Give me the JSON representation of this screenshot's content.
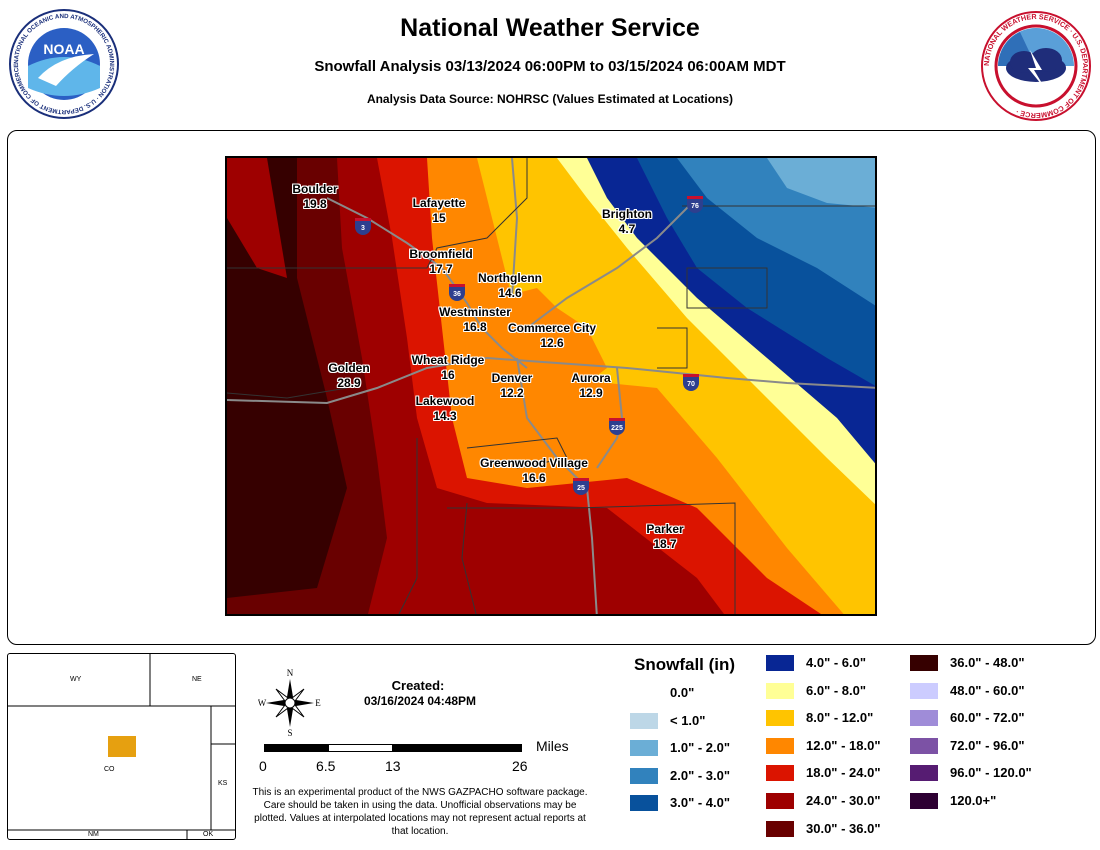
{
  "header": {
    "title": "National Weather Service",
    "subtitle": "Snowfall Analysis 03/13/2024 06:00PM to 03/15/2024 06:00AM MDT",
    "source": "Analysis Data Source: NOHRSC (Values Estimated at Locations)"
  },
  "logos": {
    "noaa_text": "NOAA",
    "noaa_ring": "NATIONAL OCEANIC AND ATMOSPHERIC ADMINISTRATION · U.S. DEPARTMENT OF COMMERCE ·",
    "nws_ring": "NATIONAL WEATHER SERVICE · U.S. DEPARTMENT OF COMMERCE ·"
  },
  "cities": [
    {
      "name": "Boulder",
      "value": "19.8"
    },
    {
      "name": "Lafayette",
      "value": "15"
    },
    {
      "name": "Brighton",
      "value": "4.7"
    },
    {
      "name": "Broomfield",
      "value": "17.7"
    },
    {
      "name": "Northglenn",
      "value": "14.6"
    },
    {
      "name": "Westminster",
      "value": "16.8"
    },
    {
      "name": "Commerce City",
      "value": "12.6"
    },
    {
      "name": "Golden",
      "value": "28.9"
    },
    {
      "name": "Wheat Ridge",
      "value": "16"
    },
    {
      "name": "Denver",
      "value": "12.2"
    },
    {
      "name": "Aurora",
      "value": "12.9"
    },
    {
      "name": "Lakewood",
      "value": "14.3"
    },
    {
      "name": "Greenwood Village",
      "value": "16.6"
    },
    {
      "name": "Parker",
      "value": "18.7"
    }
  ],
  "highways": [
    "3",
    "76",
    "36",
    "70",
    "225",
    "25"
  ],
  "inset": {
    "states": [
      "WY",
      "NE",
      "CO",
      "KS",
      "NM",
      "OK"
    ],
    "area_color": "#E6A010"
  },
  "created": {
    "label": "Created:",
    "date": "03/16/2024 04:48PM"
  },
  "compass": {
    "n": "N",
    "e": "E",
    "s": "S",
    "w": "W"
  },
  "scale": {
    "ticks": [
      "0",
      "6.5",
      "13",
      "26"
    ],
    "unit": "Miles"
  },
  "disclaimer": "This is an experimental product of the NWS GAZPACHO software package. Care should be taken in using the data. Unofficial observations may be plotted. Values at interpolated locations may not represent actual reports at that location.",
  "legend": {
    "title": "Snowfall (in)",
    "items": [
      {
        "label": "0.0\"",
        "color": "#FFFFFF"
      },
      {
        "label": "< 1.0\"",
        "color": "#BDD7E7"
      },
      {
        "label": "1.0\" - 2.0\"",
        "color": "#6BAED6"
      },
      {
        "label": "2.0\" - 3.0\"",
        "color": "#3182BD"
      },
      {
        "label": "3.0\" - 4.0\"",
        "color": "#08519C"
      },
      {
        "label": "4.0\" - 6.0\"",
        "color": "#082694"
      },
      {
        "label": "6.0\" - 8.0\"",
        "color": "#FFFF96"
      },
      {
        "label": "8.0\" - 12.0\"",
        "color": "#FFC400"
      },
      {
        "label": "12.0\" - 18.0\"",
        "color": "#FF8700"
      },
      {
        "label": "18.0\" - 24.0\"",
        "color": "#DB1400"
      },
      {
        "label": "24.0\" - 30.0\"",
        "color": "#9E0000"
      },
      {
        "label": "30.0\" - 36.0\"",
        "color": "#690000"
      },
      {
        "label": "36.0\" - 48.0\"",
        "color": "#360000"
      },
      {
        "label": "48.0\" - 60.0\"",
        "color": "#CCCCFF"
      },
      {
        "label": "60.0\" - 72.0\"",
        "color": "#9F8CD8"
      },
      {
        "label": "72.0\" - 96.0\"",
        "color": "#7C52A5"
      },
      {
        "label": "96.0\" - 120.0\"",
        "color": "#561C72"
      },
      {
        "label": "120.0+\"",
        "color": "#2E0033"
      }
    ]
  }
}
